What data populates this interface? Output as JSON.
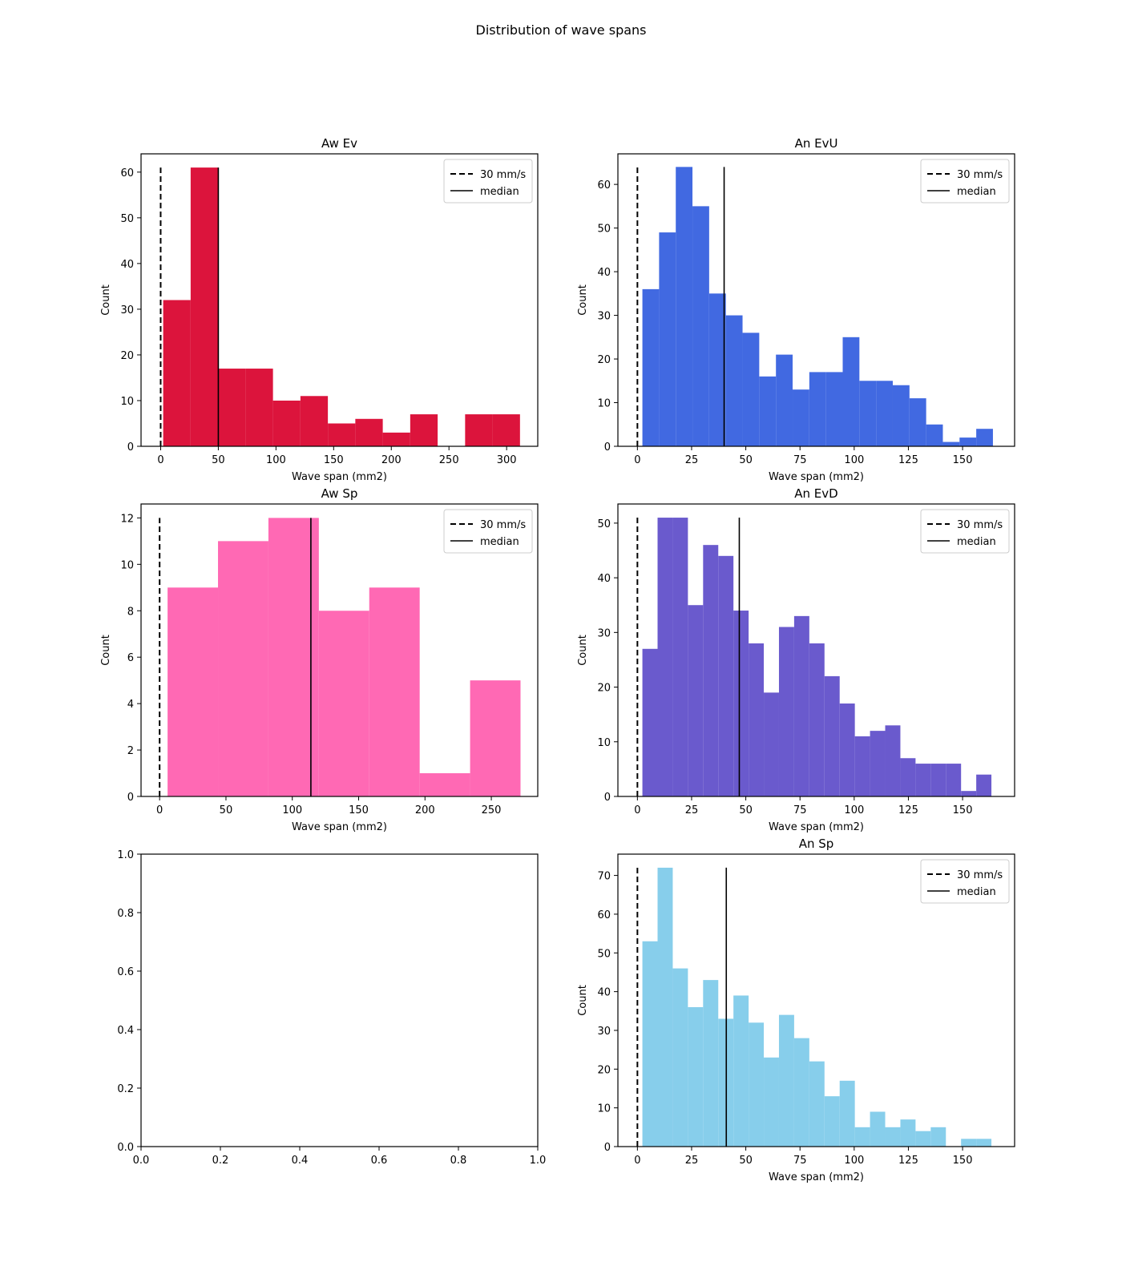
{
  "figure": {
    "suptitle": "Distribution of wave spans"
  },
  "chart_data": [
    {
      "type": "bar",
      "title": "Aw Ev",
      "color": "#dc143c",
      "xlabel": "Wave span (mm2)",
      "ylabel": "Count",
      "xlim": [
        -17,
        327
      ],
      "ylim": [
        0,
        64
      ],
      "xticks": [
        0,
        50,
        100,
        150,
        200,
        250,
        300
      ],
      "yticks": [
        0,
        10,
        20,
        30,
        40,
        50,
        60
      ],
      "bins": [
        2.2,
        26.0,
        49.8,
        73.6,
        97.4,
        121.2,
        145.0,
        168.8,
        192.6,
        216.4,
        240.2,
        264.0,
        287.8,
        311.6
      ],
      "counts": [
        32,
        61,
        17,
        17,
        10,
        11,
        5,
        6,
        3,
        7,
        0,
        7,
        7
      ],
      "reference_line": 0,
      "reference_line_label": "30 mm/s",
      "median": 50,
      "median_label": "median",
      "line_top": 61,
      "legend": "top-right"
    },
    {
      "type": "bar",
      "title": "An EvU",
      "color": "#4169e1",
      "xlabel": "Wave span (mm2)",
      "ylabel": "Count",
      "xlim": [
        -9,
        174
      ],
      "ylim": [
        0,
        67
      ],
      "xticks": [
        0,
        25,
        50,
        75,
        100,
        125,
        150
      ],
      "yticks": [
        0,
        10,
        20,
        30,
        40,
        50,
        60
      ],
      "bins": [
        2.3,
        10.0,
        17.7,
        25.4,
        33.1,
        40.8,
        48.5,
        56.2,
        63.9,
        71.6,
        79.3,
        87.0,
        94.7,
        102.4,
        110.1,
        117.8,
        125.5,
        133.2,
        140.9,
        148.6,
        156.3,
        164.0
      ],
      "counts": [
        36,
        49,
        64,
        55,
        35,
        30,
        26,
        16,
        21,
        13,
        17,
        17,
        25,
        15,
        15,
        14,
        11,
        5,
        1,
        2,
        4
      ],
      "reference_line": 0,
      "reference_line_label": "30 mm/s",
      "median": 40,
      "median_label": "median",
      "line_top": 64,
      "legend": "top-right"
    },
    {
      "type": "bar",
      "title": "Aw Sp",
      "color": "#ff69b4",
      "xlabel": "Wave span (mm2)",
      "ylabel": "Count",
      "xlim": [
        -14,
        285
      ],
      "ylim": [
        0,
        12.6
      ],
      "xticks": [
        0,
        50,
        100,
        150,
        200,
        250
      ],
      "yticks": [
        0,
        2,
        4,
        6,
        8,
        10,
        12
      ],
      "bins": [
        6,
        44,
        82,
        120,
        158,
        196,
        234,
        272
      ],
      "counts": [
        9,
        11,
        12,
        8,
        9,
        1,
        5
      ],
      "reference_line": 0,
      "reference_line_label": "30 mm/s",
      "median": 114,
      "median_label": "median",
      "line_top": 12,
      "legend": "top-right"
    },
    {
      "type": "bar",
      "title": "An EvD",
      "color": "#6a5acd",
      "xlabel": "Wave span (mm2)",
      "ylabel": "Count",
      "xlim": [
        -9,
        174
      ],
      "ylim": [
        0,
        53.5
      ],
      "xticks": [
        0,
        25,
        50,
        75,
        100,
        125,
        150
      ],
      "yticks": [
        0,
        10,
        20,
        30,
        40,
        50
      ],
      "bins": [
        2.3,
        9.3,
        16.3,
        23.3,
        30.3,
        37.3,
        44.3,
        51.3,
        58.3,
        65.3,
        72.3,
        79.3,
        86.3,
        93.3,
        100.3,
        107.3,
        114.3,
        121.3,
        128.3,
        135.3,
        142.3,
        149.3,
        156.3,
        163.3
      ],
      "counts": [
        27,
        51,
        51,
        35,
        46,
        44,
        34,
        28,
        19,
        31,
        33,
        28,
        22,
        17,
        11,
        12,
        13,
        7,
        6,
        6,
        6,
        1,
        4
      ],
      "reference_line": 0,
      "reference_line_label": "30 mm/s",
      "median": 47,
      "median_label": "median",
      "line_top": 51,
      "legend": "top-right"
    },
    {
      "type": "empty",
      "xlim": [
        0,
        1
      ],
      "ylim": [
        0,
        1
      ],
      "xticks": [
        0.0,
        0.2,
        0.4,
        0.6,
        0.8,
        1.0
      ],
      "yticks": [
        0.0,
        0.2,
        0.4,
        0.6,
        0.8,
        1.0
      ],
      "tick_format": "1dp"
    },
    {
      "type": "bar",
      "title": "An Sp",
      "color": "#87ceeb",
      "xlabel": "Wave span (mm2)",
      "ylabel": "Count",
      "xlim": [
        -9,
        174
      ],
      "ylim": [
        0,
        75.5
      ],
      "xticks": [
        0,
        25,
        50,
        75,
        100,
        125,
        150
      ],
      "yticks": [
        0,
        10,
        20,
        30,
        40,
        50,
        60,
        70
      ],
      "bins": [
        2.3,
        9.3,
        16.3,
        23.3,
        30.3,
        37.3,
        44.3,
        51.3,
        58.3,
        65.3,
        72.3,
        79.3,
        86.3,
        93.3,
        100.3,
        107.3,
        114.3,
        121.3,
        128.3,
        135.3,
        142.3,
        149.3,
        156.3,
        163.3
      ],
      "counts": [
        53,
        72,
        46,
        36,
        43,
        33,
        39,
        32,
        23,
        34,
        28,
        22,
        13,
        17,
        5,
        9,
        5,
        7,
        4,
        5,
        0,
        2,
        2
      ],
      "reference_line": 0,
      "reference_line_label": "30 mm/s",
      "median": 41,
      "median_label": "median",
      "line_top": 72,
      "legend": "top-right"
    }
  ]
}
